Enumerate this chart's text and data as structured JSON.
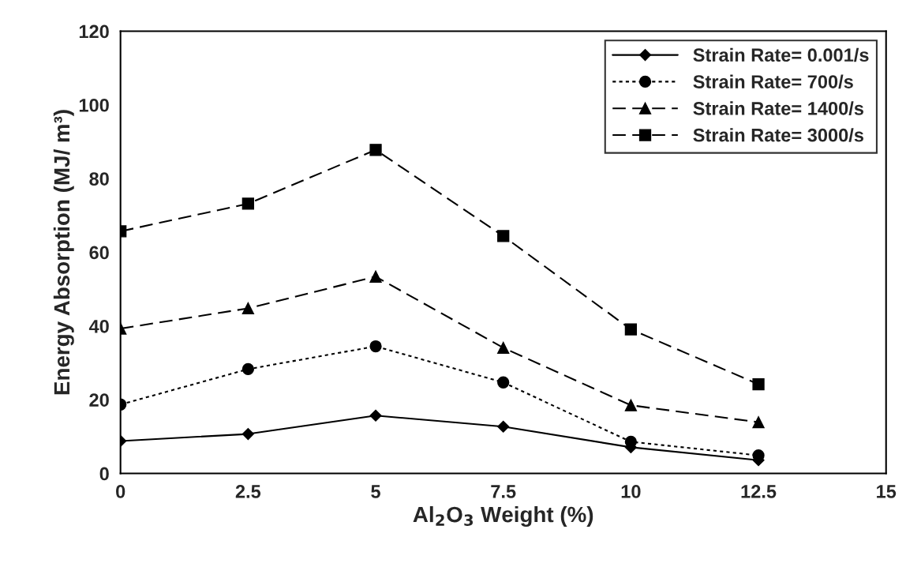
{
  "chart_data": {
    "type": "line",
    "xlabel": "Al$_{2}$O$_{3}$ Weight (%)",
    "ylabel": "Energy Absorption (MJ/ m³)",
    "x": [
      0,
      2.5,
      5,
      7.5,
      10,
      12.5
    ],
    "series": [
      {
        "name": "Strain Rate= 0.001/s",
        "color": "#000000",
        "marker": "diamond",
        "line_style": "solid",
        "values": [
          8.8,
          10.7,
          15.7,
          12.7,
          7.1,
          3.6
        ]
      },
      {
        "name": "Strain Rate= 700/s",
        "color": "#000000",
        "marker": "circle",
        "line_style": "dotted",
        "values": [
          18.7,
          28.3,
          34.5,
          24.7,
          8.6,
          4.9
        ]
      },
      {
        "name": "Strain Rate= 1400/s",
        "color": "#000000",
        "marker": "triangle",
        "line_style": "dashed",
        "values": [
          39.3,
          44.8,
          53.4,
          34.1,
          18.5,
          13.9
        ]
      },
      {
        "name": "Strain Rate= 3000/s",
        "color": "#000000",
        "marker": "square",
        "line_style": "dashed",
        "values": [
          65.7,
          73.2,
          87.8,
          64.4,
          39.1,
          24.2
        ]
      }
    ],
    "xlim": [
      0,
      15
    ],
    "xticks": [
      0,
      2.5,
      5,
      7.5,
      10,
      12.5,
      15
    ],
    "ylim": [
      0,
      120
    ],
    "yticks": [
      0,
      20,
      40,
      60,
      80,
      100,
      120
    ],
    "grid": false,
    "legend": "top right"
  }
}
